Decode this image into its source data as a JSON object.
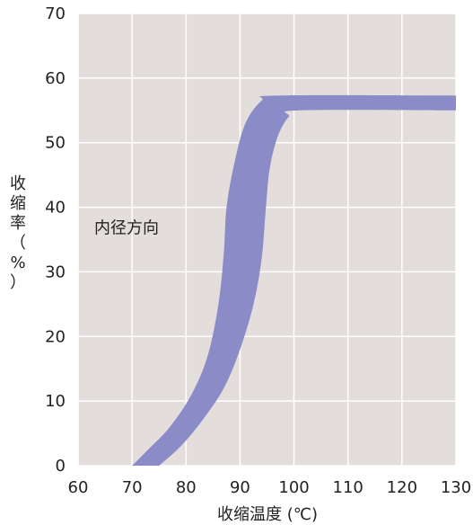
{
  "chart_data": {
    "type": "area",
    "title": "",
    "xlabel": "收缩温度 (℃)",
    "ylabel": "收缩率（%）",
    "xlim": [
      60,
      130
    ],
    "ylim": [
      0,
      70
    ],
    "x_ticks": [
      60,
      70,
      80,
      90,
      100,
      110,
      120,
      130
    ],
    "y_ticks": [
      0,
      10,
      20,
      30,
      40,
      50,
      60,
      70
    ],
    "grid": true,
    "legend": "none",
    "colors": {
      "plot_background": "#e3dedb",
      "grid": "#ffffff",
      "band": "#8b8cc7"
    },
    "annotations": [
      {
        "text": "内径方向",
        "x": 63,
        "y": 36
      }
    ],
    "series": [
      {
        "upper": [
          {
            "x": 70,
            "y": 0
          },
          {
            "x": 73,
            "y": 2.5
          },
          {
            "x": 77,
            "y": 6
          },
          {
            "x": 81,
            "y": 11
          },
          {
            "x": 84,
            "y": 17
          },
          {
            "x": 86,
            "y": 25
          },
          {
            "x": 87,
            "y": 33
          },
          {
            "x": 87.5,
            "y": 40
          },
          {
            "x": 89,
            "y": 47
          },
          {
            "x": 91,
            "y": 53
          },
          {
            "x": 94,
            "y": 56.5
          },
          {
            "x": 97,
            "y": 57.3
          },
          {
            "x": 130,
            "y": 57.3
          }
        ],
        "lower": [
          {
            "x": 75,
            "y": 0
          },
          {
            "x": 79,
            "y": 3
          },
          {
            "x": 83,
            "y": 7
          },
          {
            "x": 87,
            "y": 12
          },
          {
            "x": 90,
            "y": 18
          },
          {
            "x": 92.5,
            "y": 25
          },
          {
            "x": 94,
            "y": 32
          },
          {
            "x": 94.8,
            "y": 40
          },
          {
            "x": 95.5,
            "y": 46
          },
          {
            "x": 97,
            "y": 51
          },
          {
            "x": 99,
            "y": 54
          },
          {
            "x": 101,
            "y": 55
          },
          {
            "x": 130,
            "y": 55
          }
        ]
      }
    ]
  }
}
